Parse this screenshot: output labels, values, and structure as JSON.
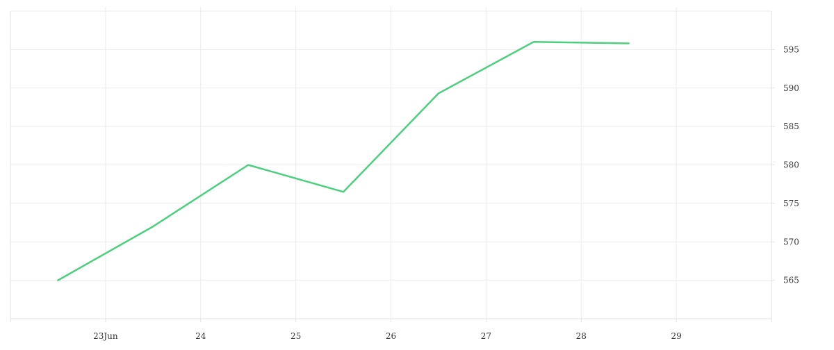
{
  "chart_data": {
    "type": "line",
    "x": [
      "2024-06-22T12:00",
      "2024-06-23T12:00",
      "2024-06-24T12:00",
      "2024-06-25T12:00",
      "2024-06-26T12:00",
      "2024-06-27T12:00",
      "2024-06-28T12:00"
    ],
    "series": [
      {
        "values": [
          565.0,
          572.0,
          580.0,
          576.5,
          589.3,
          596.0,
          595.8
        ],
        "color": "#4cd07d"
      }
    ],
    "xlim": [
      "2024-06-22T00:00",
      "2024-06-30T00:00"
    ],
    "ylim": [
      560,
      600
    ],
    "x_ticks": [
      {
        "date": "2024-06-23",
        "label": "23Jun"
      },
      {
        "date": "2024-06-24",
        "label": "24"
      },
      {
        "date": "2024-06-25",
        "label": "25"
      },
      {
        "date": "2024-06-26",
        "label": "26"
      },
      {
        "date": "2024-06-27",
        "label": "27"
      },
      {
        "date": "2024-06-28",
        "label": "28"
      },
      {
        "date": "2024-06-29",
        "label": "29"
      }
    ],
    "y_ticks": [
      565,
      570,
      575,
      580,
      585,
      590,
      595
    ],
    "y_axis_side": "right",
    "grid": true,
    "legend": "none"
  }
}
